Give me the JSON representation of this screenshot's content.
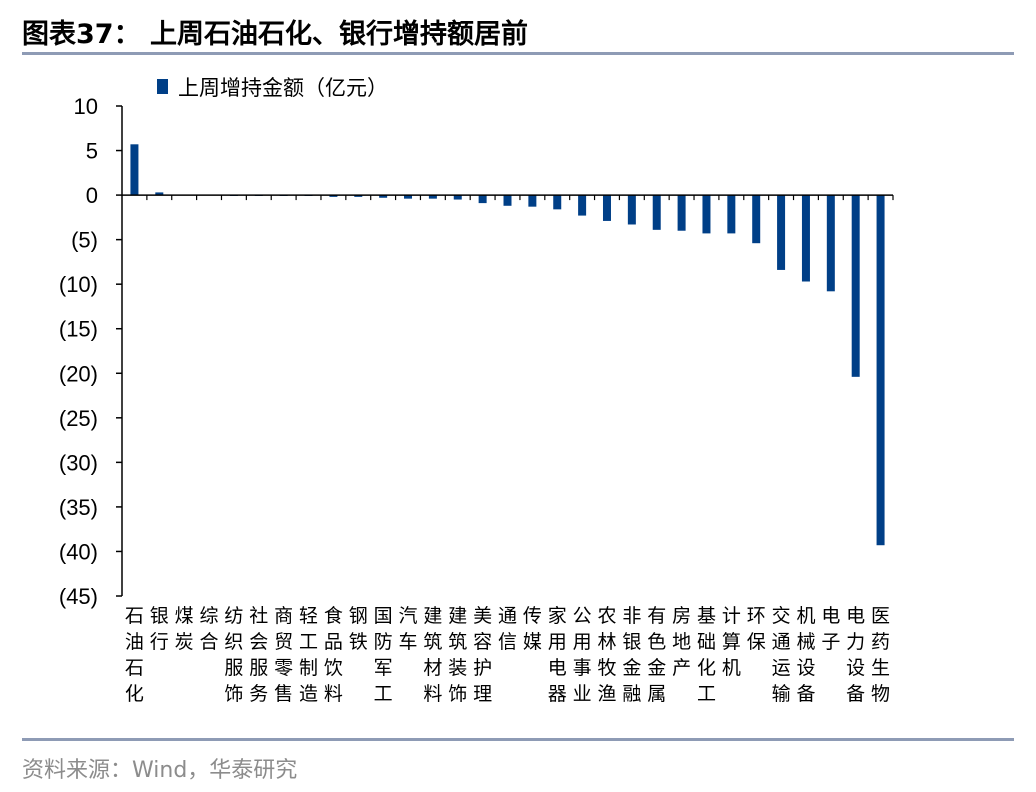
{
  "header": {
    "title": "图表37：  上周石油石化、银行增持额居前"
  },
  "footer": {
    "source": "资料来源：Wind，华泰研究"
  },
  "colors": {
    "bar": "#003f87",
    "rule": "#8e9bb5",
    "source_text": "#8c8c8c"
  },
  "chart_data": {
    "type": "bar",
    "title": "",
    "xlabel": "",
    "ylabel": "",
    "ylim": [
      -45,
      10
    ],
    "yticks": [
      10,
      5,
      0,
      -5,
      -10,
      -15,
      -20,
      -25,
      -30,
      -35,
      -40,
      -45
    ],
    "ytick_labels": [
      "10",
      "5",
      "0",
      "(5)",
      "(10)",
      "(15)",
      "(20)",
      "(25)",
      "(30)",
      "(35)",
      "(40)",
      "(45)"
    ],
    "legend": {
      "position": "top-left"
    },
    "grid": false,
    "categories": [
      "石油石化",
      "银行",
      "煤炭",
      "综合",
      "纺织服饰",
      "社会服务",
      "商贸零售",
      "轻工制造",
      "食品饮料",
      "钢铁",
      "国防军工",
      "汽车",
      "建筑材料",
      "建筑装饰",
      "美容护理",
      "通信",
      "传媒",
      "家用电器",
      "公用事业",
      "农林牧渔",
      "非银金融",
      "有色金属",
      "房地产",
      "基础化工",
      "计算机",
      "环保",
      "交通运输",
      "机械设备",
      "电子",
      "电力设备",
      "医药生物"
    ],
    "series": [
      {
        "name": "上周增持金额（亿元）",
        "values": [
          5.7,
          0.3,
          0.0,
          0.0,
          -0.1,
          -0.1,
          -0.1,
          -0.1,
          -0.2,
          -0.2,
          -0.3,
          -0.4,
          -0.4,
          -0.5,
          -0.9,
          -1.2,
          -1.3,
          -1.6,
          -2.3,
          -2.9,
          -3.3,
          -3.9,
          -4.0,
          -4.3,
          -4.3,
          -5.4,
          -8.4,
          -9.7,
          -10.8,
          -20.4,
          -39.3
        ]
      }
    ]
  }
}
